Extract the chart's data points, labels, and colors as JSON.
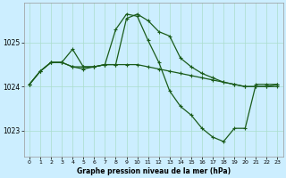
{
  "background_color": "#cceeff",
  "grid_color": "#aaddcc",
  "line_color": "#1a5c1a",
  "marker": "+",
  "xlim": [
    -0.5,
    23.5
  ],
  "ylim": [
    1022.4,
    1025.9
  ],
  "yticks": [
    1023,
    1024,
    1025
  ],
  "xticks": [
    0,
    1,
    2,
    3,
    4,
    5,
    6,
    7,
    8,
    9,
    10,
    11,
    12,
    13,
    14,
    15,
    16,
    17,
    18,
    19,
    20,
    21,
    22,
    23
  ],
  "xlabel": "Graphe pression niveau de la mer (hPa)",
  "line1_x": [
    0,
    1,
    2,
    3,
    4,
    5,
    6,
    7,
    8,
    9,
    10,
    11,
    12,
    13,
    14,
    15,
    16,
    17,
    18,
    19,
    20,
    21,
    22,
    23
  ],
  "line1_y": [
    1024.05,
    1024.35,
    1024.55,
    1024.55,
    1024.85,
    1024.45,
    1024.45,
    1024.5,
    1025.3,
    1025.65,
    1025.6,
    1025.05,
    1024.55,
    1023.9,
    1023.55,
    1023.35,
    1023.05,
    1022.85,
    1022.75,
    1023.05,
    1023.05,
    1024.05,
    1024.05,
    1024.05
  ],
  "line2_x": [
    0,
    1,
    2,
    3,
    4,
    5,
    6,
    7,
    8,
    9,
    10,
    11,
    12,
    13,
    14,
    15,
    16,
    17,
    18,
    19,
    20,
    21,
    22,
    23
  ],
  "line2_y": [
    1024.05,
    1024.35,
    1024.55,
    1024.55,
    1024.45,
    1024.4,
    1024.45,
    1024.5,
    1024.5,
    1025.55,
    1025.65,
    1025.5,
    1025.25,
    1025.15,
    1024.65,
    1024.45,
    1024.3,
    1024.2,
    1024.1,
    1024.05,
    1024.0,
    1024.0,
    1024.0,
    1024.05
  ],
  "line3_x": [
    0,
    1,
    2,
    3,
    4,
    5,
    6,
    7,
    8,
    9,
    10,
    11,
    12,
    13,
    14,
    15,
    16,
    17,
    18,
    19,
    20,
    21,
    22,
    23
  ],
  "line3_y": [
    1024.05,
    1024.35,
    1024.55,
    1024.55,
    1024.45,
    1024.45,
    1024.45,
    1024.5,
    1024.5,
    1024.5,
    1024.5,
    1024.45,
    1024.4,
    1024.35,
    1024.3,
    1024.25,
    1024.2,
    1024.15,
    1024.1,
    1024.05,
    1024.0,
    1024.0,
    1024.0,
    1024.0
  ]
}
